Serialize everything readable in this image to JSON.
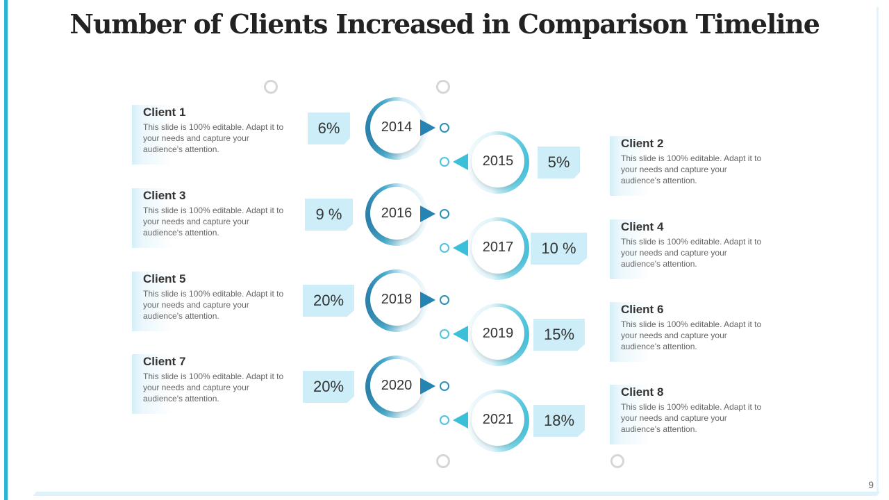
{
  "title": "Number of Clients Increased in Comparison Timeline",
  "page_number": "9",
  "colors": {
    "accent_dark": "#2a7da8",
    "accent_light": "#43c0da",
    "percent_box": "#cdeef8",
    "frame": "#29b6d4"
  },
  "description": "This slide is 100% editable. Adapt it to your needs and capture your audience's attention.",
  "milestones": [
    {
      "year": "2014",
      "percent": "6%",
      "client": "Client 1"
    },
    {
      "year": "2015",
      "percent": "5%",
      "client": "Client 2"
    },
    {
      "year": "2016",
      "percent": "9 %",
      "client": "Client 3"
    },
    {
      "year": "2017",
      "percent": "10 %",
      "client": "Client 4"
    },
    {
      "year": "2018",
      "percent": "20%",
      "client": "Client 5"
    },
    {
      "year": "2019",
      "percent": "15%",
      "client": "Client 6"
    },
    {
      "year": "2020",
      "percent": "20%",
      "client": "Client 7"
    },
    {
      "year": "2021",
      "percent": "18%",
      "client": "Client 8"
    }
  ]
}
